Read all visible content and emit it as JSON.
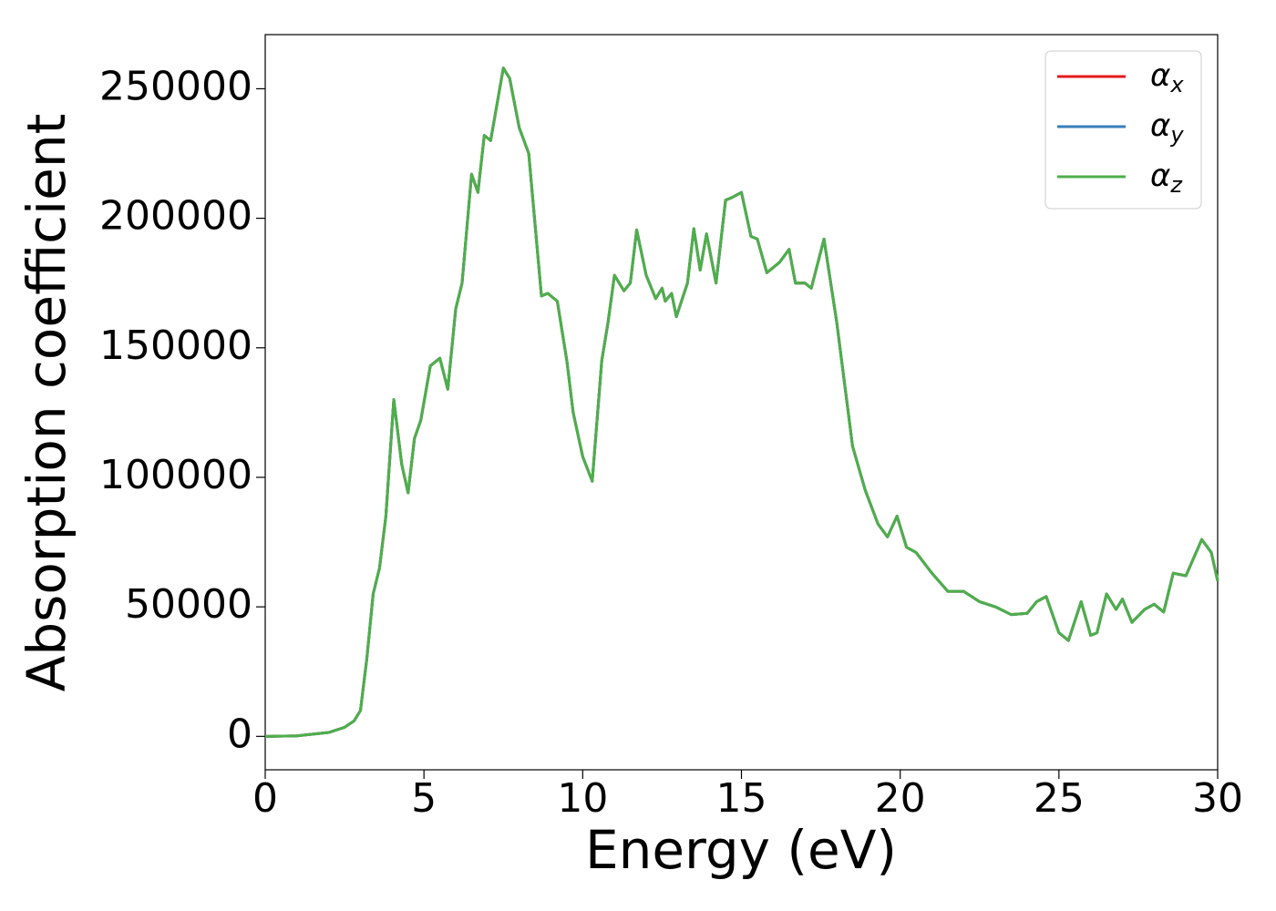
{
  "chart_data": {
    "type": "line",
    "xlabel": "Energy (eV)",
    "ylabel": "Absorption coefficient",
    "x": [
      0,
      1,
      2,
      2.5,
      2.8,
      3.0,
      3.2,
      3.4,
      3.6,
      3.8,
      4.05,
      4.3,
      4.5,
      4.7,
      4.9,
      5.2,
      5.5,
      5.75,
      6.0,
      6.2,
      6.5,
      6.7,
      6.9,
      7.1,
      7.5,
      7.7,
      8.0,
      8.3,
      8.7,
      8.9,
      9.2,
      9.5,
      9.7,
      10.0,
      10.3,
      10.6,
      10.8,
      11.0,
      11.3,
      11.5,
      11.7,
      12.0,
      12.3,
      12.5,
      12.6,
      12.8,
      12.95,
      13.3,
      13.5,
      13.7,
      13.9,
      14.2,
      14.5,
      14.7,
      15.0,
      15.3,
      15.5,
      15.8,
      16.2,
      16.5,
      16.7,
      17.0,
      17.2,
      17.6,
      18.0,
      18.5,
      18.9,
      19.3,
      19.6,
      19.9,
      20.2,
      20.5,
      21.0,
      21.5,
      22.0,
      22.5,
      23.0,
      23.5,
      24.0,
      24.3,
      24.6,
      25.0,
      25.3,
      25.7,
      26.0,
      26.2,
      26.5,
      26.8,
      27.0,
      27.3,
      27.7,
      28.0,
      28.3,
      28.6,
      29.0,
      29.5,
      29.8,
      30.0
    ],
    "series": [
      {
        "name": "α",
        "subscript": "x",
        "color": "#e41a1c",
        "values": [
          0,
          200,
          1500,
          3500,
          6000,
          10000,
          30000,
          55000,
          65000,
          85000,
          130000,
          105000,
          94000,
          115000,
          122000,
          143000,
          146000,
          134000,
          165000,
          175000,
          217000,
          210000,
          232000,
          230000,
          258000,
          254000,
          235000,
          225000,
          170000,
          171000,
          168000,
          145000,
          125000,
          108000,
          98500,
          145000,
          160000,
          178000,
          172000,
          175000,
          195500,
          178000,
          169000,
          173000,
          168000,
          171000,
          162000,
          175000,
          196000,
          180000,
          194000,
          175000,
          207000,
          208000,
          210000,
          193000,
          192000,
          179000,
          183000,
          188000,
          175000,
          175000,
          173000,
          192000,
          160000,
          112000,
          95000,
          82000,
          77000,
          85000,
          73000,
          71000,
          63000,
          56000,
          56000,
          52000,
          50000,
          47000,
          47500,
          52000,
          54000,
          40000,
          37000,
          52000,
          39000,
          40000,
          55000,
          49000,
          53000,
          44000,
          49000,
          51000,
          48000,
          63000,
          62000,
          76000,
          71000,
          60000
        ]
      },
      {
        "name": "α",
        "subscript": "y",
        "color": "#377eb8",
        "values": [
          0,
          200,
          1500,
          3500,
          6000,
          10000,
          30000,
          55000,
          65000,
          85000,
          130000,
          105000,
          94000,
          115000,
          122000,
          143000,
          146000,
          134000,
          165000,
          175000,
          217000,
          210000,
          232000,
          230000,
          258000,
          254000,
          235000,
          225000,
          170000,
          171000,
          168000,
          145000,
          125000,
          108000,
          98500,
          145000,
          160000,
          178000,
          172000,
          175000,
          195500,
          178000,
          169000,
          173000,
          168000,
          171000,
          162000,
          175000,
          196000,
          180000,
          194000,
          175000,
          207000,
          208000,
          210000,
          193000,
          192000,
          179000,
          183000,
          188000,
          175000,
          175000,
          173000,
          192000,
          160000,
          112000,
          95000,
          82000,
          77000,
          85000,
          73000,
          71000,
          63000,
          56000,
          56000,
          52000,
          50000,
          47000,
          47500,
          52000,
          54000,
          40000,
          37000,
          52000,
          39000,
          40000,
          55000,
          49000,
          53000,
          44000,
          49000,
          51000,
          48000,
          63000,
          62000,
          76000,
          71000,
          60000
        ]
      },
      {
        "name": "α",
        "subscript": "z",
        "color": "#4daf4a",
        "values": [
          0,
          200,
          1500,
          3500,
          6000,
          10000,
          30000,
          55000,
          65000,
          85000,
          130000,
          105000,
          94000,
          115000,
          122000,
          143000,
          146000,
          134000,
          165000,
          175000,
          217000,
          210000,
          232000,
          230000,
          258000,
          254000,
          235000,
          225000,
          170000,
          171000,
          168000,
          145000,
          125000,
          108000,
          98500,
          145000,
          160000,
          178000,
          172000,
          175000,
          195500,
          178000,
          169000,
          173000,
          168000,
          171000,
          162000,
          175000,
          196000,
          180000,
          194000,
          175000,
          207000,
          208000,
          210000,
          193000,
          192000,
          179000,
          183000,
          188000,
          175000,
          175000,
          173000,
          192000,
          160000,
          112000,
          95000,
          82000,
          77000,
          85000,
          73000,
          71000,
          63000,
          56000,
          56000,
          52000,
          50000,
          47000,
          47500,
          52000,
          54000,
          40000,
          37000,
          52000,
          39000,
          40000,
          55000,
          49000,
          53000,
          44000,
          49000,
          51000,
          48000,
          63000,
          62000,
          76000,
          71000,
          60000
        ]
      }
    ],
    "xlim": [
      0,
      30
    ],
    "xticks": [
      0,
      5,
      10,
      15,
      20,
      25,
      30
    ],
    "ylim": [
      -12900,
      270900
    ],
    "yticks": [
      0,
      50000,
      100000,
      150000,
      200000,
      250000
    ],
    "grid": false,
    "legend": "upper right"
  }
}
